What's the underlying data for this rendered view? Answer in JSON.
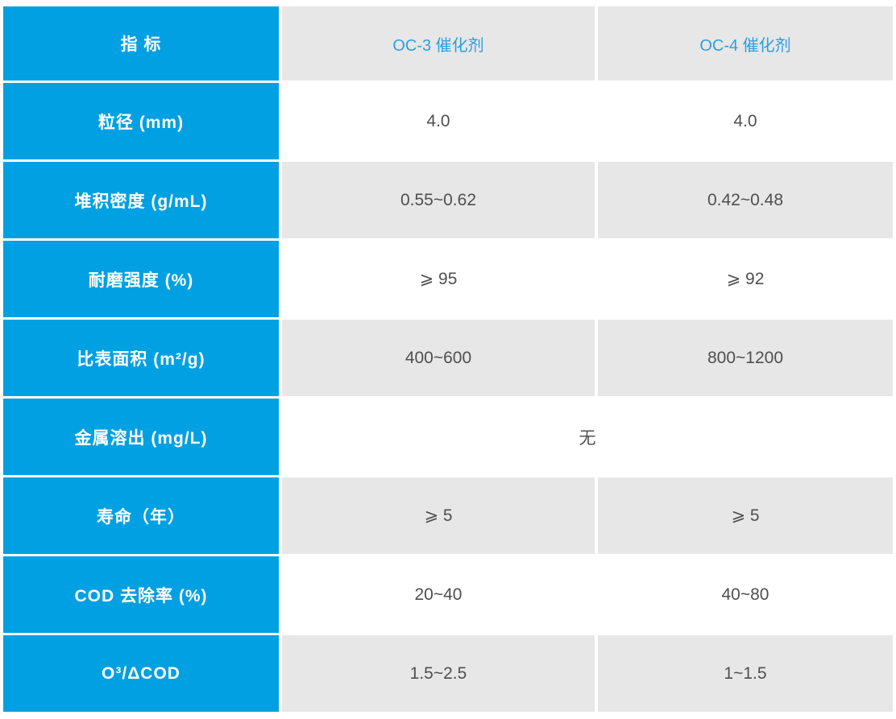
{
  "colors": {
    "accent_blue": "#00a0e2",
    "header_text_blue": "#2b9fe0",
    "cell_gray": "#e7e7e7",
    "value_text": "#4f4f4f",
    "label_text": "#ffffff",
    "page_bg": "#ffffff"
  },
  "table": {
    "header": {
      "indicator": "指 标",
      "oc3": "OC-3 催化剂",
      "oc4": "OC-4 催化剂"
    },
    "rows": [
      {
        "label": "粒径 (mm)",
        "oc3": "4.0",
        "oc4": "4.0"
      },
      {
        "label": "堆积密度 (g/mL)",
        "oc3": "0.55~0.62",
        "oc4": "0.42~0.48"
      },
      {
        "label": "耐磨强度 (%)",
        "oc3": "⩾ 95",
        "oc4": "⩾ 92"
      },
      {
        "label": "比表面积 (m²/g)",
        "oc3": "400~600",
        "oc4": "800~1200"
      },
      {
        "label": "金属溶出 (mg/L)",
        "merged": "无"
      },
      {
        "label": "寿命（年）",
        "oc3": "⩾ 5",
        "oc4": "⩾ 5"
      },
      {
        "label": "COD 去除率 (%)",
        "oc3": "20~40",
        "oc4": "40~80"
      },
      {
        "label": "O³/ΔCOD",
        "oc3": "1.5~2.5",
        "oc4": "1~1.5"
      }
    ]
  },
  "chart_data": {
    "type": "table",
    "columns": [
      "指 标",
      "OC-3 催化剂",
      "OC-4 催化剂"
    ],
    "rows": [
      [
        "粒径 (mm)",
        "4.0",
        "4.0"
      ],
      [
        "堆积密度 (g/mL)",
        "0.55~0.62",
        "0.42~0.48"
      ],
      [
        "耐磨强度 (%)",
        "⩾ 95",
        "⩾ 92"
      ],
      [
        "比表面积 (m²/g)",
        "400~600",
        "800~1200"
      ],
      [
        "金属溶出 (mg/L)",
        "无",
        "无"
      ],
      [
        "寿命（年）",
        "⩾ 5",
        "⩾ 5"
      ],
      [
        "COD 去除率 (%)",
        "20~40",
        "40~80"
      ],
      [
        "O³/ΔCOD",
        "1.5~2.5",
        "1~1.5"
      ]
    ],
    "layout": {
      "label_column_bg": "#00a0e2",
      "striped_row_bg": "#e7e7e7",
      "merged_row_label": "金属溶出 (mg/L)",
      "merged_row_value": "无"
    }
  }
}
